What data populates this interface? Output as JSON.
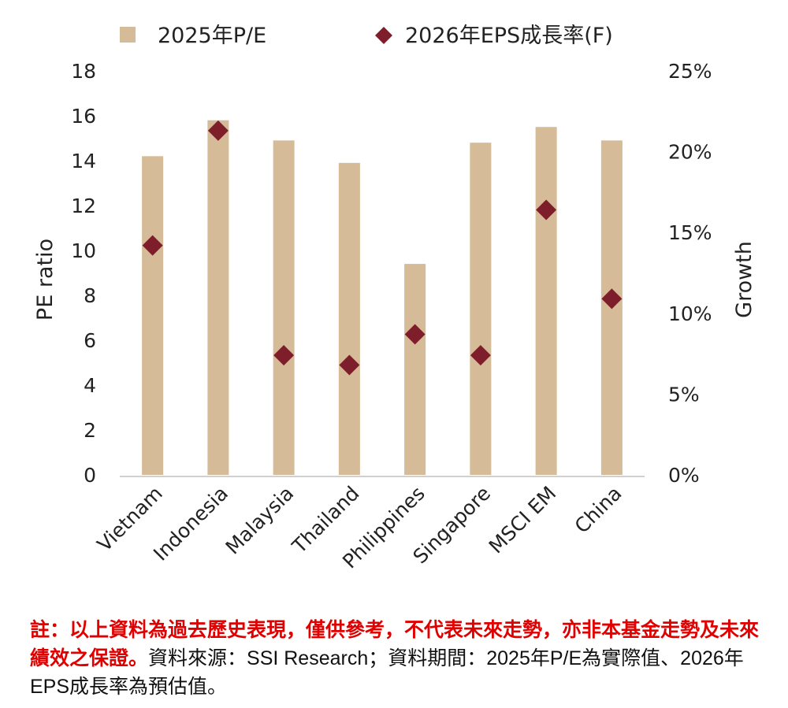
{
  "chart_data": {
    "type": "bar",
    "categories": [
      "Vietnam",
      "Indonesia",
      "Malaysia",
      "Thailand",
      "Philippines",
      "Singapore",
      "MSCI EM",
      "China"
    ],
    "series": [
      {
        "name": "2025年P/E",
        "type": "bar",
        "axis": "left",
        "color": "#d5bb98",
        "values": [
          14.2,
          15.8,
          14.9,
          13.9,
          9.4,
          14.8,
          15.5,
          14.9
        ]
      },
      {
        "name": "2026年EPS成長率(F)",
        "type": "scatter",
        "axis": "right",
        "color": "#7e1e2a",
        "values": [
          14.2,
          21.3,
          7.4,
          6.8,
          8.7,
          7.4,
          16.4,
          10.9
        ]
      }
    ],
    "ylabel": "PE ratio",
    "y2label": "Growth",
    "ylim": [
      0,
      18
    ],
    "yticks": [
      0,
      2,
      4,
      6,
      8,
      10,
      12,
      14,
      16,
      18
    ],
    "y2lim": [
      0,
      25
    ],
    "y2ticks": [
      "0%",
      "5%",
      "10%",
      "15%",
      "20%",
      "25%"
    ],
    "legend_position": "top",
    "grid": false
  },
  "note": {
    "red": "註：以上資料為過去歷史表現，僅供參考，不代表未來走勢，亦非本基金走勢及未來績效之保證。",
    "black": "資料來源：SSI Research；資料期間：2025年P/E為實際值、2026年EPS成長率為預估值。"
  }
}
